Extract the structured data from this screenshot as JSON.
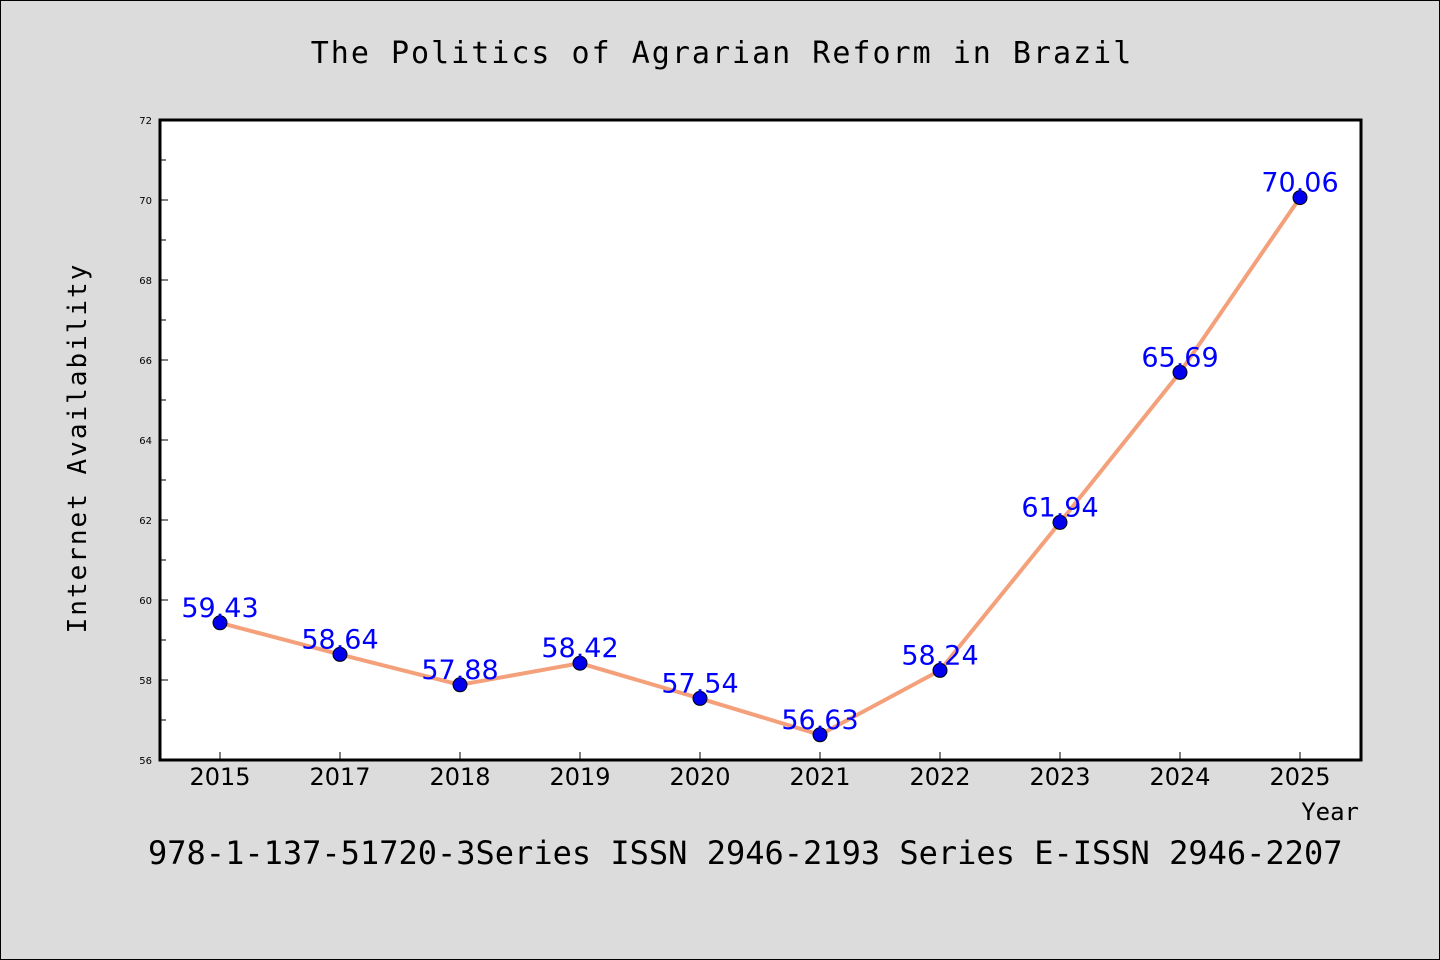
{
  "chart_data": {
    "type": "line",
    "title": "The Politics of Agrarian Reform in Brazil",
    "xlabel": "Year",
    "ylabel": "Internet Availability",
    "categories": [
      "2015",
      "2017",
      "2018",
      "2019",
      "2020",
      "2021",
      "2022",
      "2023",
      "2024",
      "2025"
    ],
    "series": [
      {
        "values": [
          59.43,
          58.64,
          57.88,
          58.42,
          57.54,
          56.63,
          58.24,
          61.94,
          65.69,
          70.06
        ]
      }
    ],
    "data_labels": [
      "59.43",
      "58.64",
      "57.88",
      "58.42",
      "57.54",
      "56.63",
      "58.24",
      "61.94",
      "65.69",
      "70.06"
    ],
    "ylim": [
      56,
      72
    ],
    "yticks": [
      56,
      58,
      60,
      62,
      64,
      66,
      68,
      70,
      72
    ],
    "grid": false,
    "legend": "none",
    "line_color": "#f4a07a",
    "marker_color": "#0000ee",
    "label_color": "#0000ff"
  },
  "footer": "978-1-137-51720-3Series ISSN 2946-2193 Series E-ISSN 2946-2207"
}
